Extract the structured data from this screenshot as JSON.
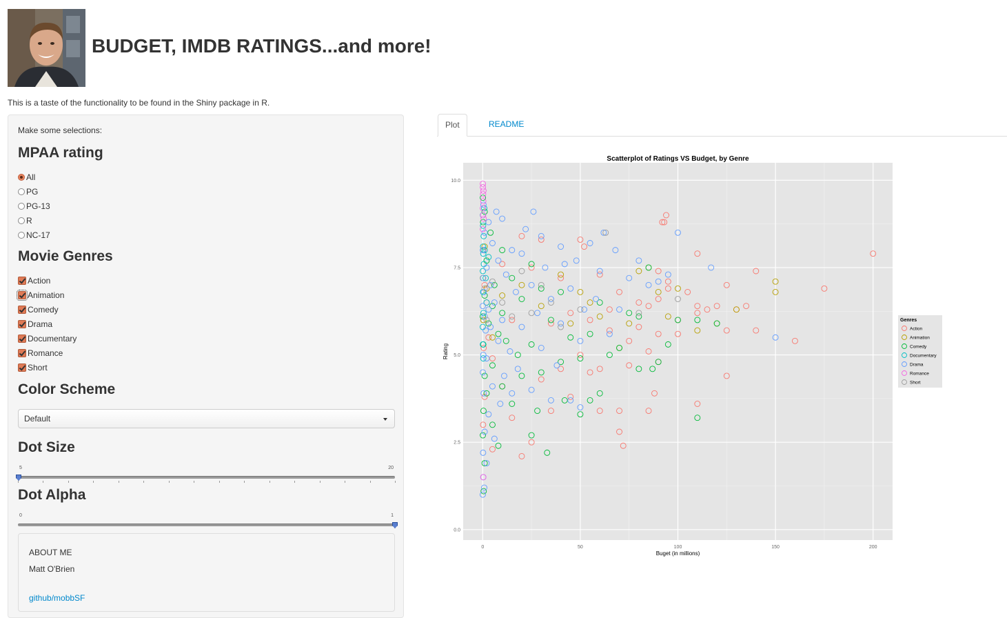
{
  "header": {
    "title": "BUDGET, IMDB RATINGS...and more!",
    "subtitle": "This is a taste of the functionality to be found in the Shiny package in R."
  },
  "sidebar": {
    "instructions": "Make some selections:",
    "mpaa": {
      "heading": "MPAA rating",
      "options": [
        "All",
        "PG",
        "PG-13",
        "R",
        "NC-17"
      ],
      "selected": "All"
    },
    "genres": {
      "heading": "Movie Genres",
      "options": [
        "Action",
        "Animation",
        "Comedy",
        "Drama",
        "Documentary",
        "Romance",
        "Short"
      ],
      "checked": [
        true,
        true,
        true,
        true,
        true,
        true,
        true
      ]
    },
    "color_scheme": {
      "heading": "Color Scheme",
      "selected": "Default"
    },
    "dot_size": {
      "heading": "Dot Size",
      "min": "5",
      "max": "20",
      "value": 5
    },
    "dot_alpha": {
      "heading": "Dot Alpha",
      "min": "0",
      "max": "1",
      "value": 1
    },
    "about": {
      "heading": "ABOUT ME",
      "name": "Matt O'Brien",
      "link": "github/mobbSF"
    }
  },
  "tabs": [
    {
      "label": "Plot",
      "active": true
    },
    {
      "label": "README",
      "active": false
    }
  ],
  "chart_data": {
    "type": "scatter",
    "title": "Scatterplot of Ratings VS Budget, by Genre",
    "xlabel": "Buget (in millions)",
    "ylabel": "Rating",
    "xlim": [
      -10,
      210
    ],
    "ylim": [
      -0.3,
      10.5
    ],
    "x_ticks": [
      0,
      50,
      100,
      150,
      200
    ],
    "x_tick_labels": [
      "0",
      "50",
      "100",
      "150",
      "200"
    ],
    "y_ticks": [
      0,
      2.5,
      5,
      7.5,
      10
    ],
    "y_tick_labels": [
      "0.0",
      "2.5",
      "5.0",
      "7.5",
      "10.0"
    ],
    "grid": true,
    "legend_title": "Genres",
    "legend_position": "right",
    "series": [
      {
        "name": "Action",
        "color": "#F8766D",
        "points": [
          [
            200,
            7.9
          ],
          [
            175,
            6.9
          ],
          [
            160,
            5.4
          ],
          [
            140,
            7.4
          ],
          [
            140,
            5.7
          ],
          [
            135,
            6.4
          ],
          [
            130,
            6.3
          ],
          [
            125,
            4.4
          ],
          [
            125,
            7.0
          ],
          [
            125,
            5.7
          ],
          [
            120,
            6.4
          ],
          [
            115,
            6.3
          ],
          [
            110,
            6.2
          ],
          [
            110,
            6.4
          ],
          [
            110,
            3.6
          ],
          [
            110,
            7.9
          ],
          [
            105,
            6.8
          ],
          [
            100,
            5.6
          ],
          [
            100,
            6.0
          ],
          [
            95,
            6.9
          ],
          [
            95,
            7.1
          ],
          [
            94,
            9.0
          ],
          [
            93,
            8.8
          ],
          [
            92,
            8.8
          ],
          [
            90,
            5.6
          ],
          [
            90,
            4.8
          ],
          [
            90,
            6.6
          ],
          [
            90,
            7.4
          ],
          [
            88,
            3.9
          ],
          [
            85,
            6.4
          ],
          [
            85,
            5.1
          ],
          [
            85,
            3.4
          ],
          [
            80,
            5.8
          ],
          [
            80,
            6.5
          ],
          [
            75,
            5.4
          ],
          [
            75,
            4.7
          ],
          [
            72,
            2.4
          ],
          [
            70,
            3.4
          ],
          [
            70,
            2.8
          ],
          [
            70,
            6.8
          ],
          [
            65,
            5.7
          ],
          [
            65,
            6.3
          ],
          [
            60,
            4.6
          ],
          [
            60,
            3.4
          ],
          [
            60,
            7.3
          ],
          [
            55,
            4.5
          ],
          [
            55,
            6.0
          ],
          [
            52,
            8.1
          ],
          [
            50,
            8.3
          ],
          [
            50,
            5.0
          ],
          [
            45,
            3.8
          ],
          [
            45,
            6.2
          ],
          [
            40,
            7.2
          ],
          [
            40,
            4.6
          ],
          [
            35,
            3.4
          ],
          [
            35,
            5.9
          ],
          [
            30,
            4.3
          ],
          [
            30,
            8.3
          ],
          [
            25,
            2.5
          ],
          [
            25,
            7.5
          ],
          [
            20,
            2.1
          ],
          [
            20,
            8.4
          ],
          [
            15,
            3.2
          ],
          [
            15,
            6.0
          ],
          [
            10,
            4.1
          ],
          [
            10,
            7.6
          ],
          [
            5,
            2.3
          ],
          [
            5,
            4.9
          ],
          [
            3,
            5.5
          ],
          [
            2,
            6.5
          ],
          [
            1,
            3.8
          ],
          [
            1,
            7.0
          ],
          [
            0.5,
            5.2
          ],
          [
            0.3,
            8.0
          ],
          [
            0.2,
            3.0
          ]
        ]
      },
      {
        "name": "Animation",
        "color": "#B79F00",
        "points": [
          [
            150,
            7.1
          ],
          [
            150,
            6.8
          ],
          [
            130,
            6.3
          ],
          [
            120,
            5.9
          ],
          [
            110,
            5.7
          ],
          [
            100,
            6.9
          ],
          [
            95,
            6.1
          ],
          [
            90,
            6.8
          ],
          [
            85,
            7.5
          ],
          [
            80,
            7.4
          ],
          [
            75,
            5.9
          ],
          [
            70,
            5.2
          ],
          [
            60,
            6.1
          ],
          [
            55,
            6.5
          ],
          [
            50,
            6.8
          ],
          [
            45,
            5.9
          ],
          [
            40,
            7.3
          ],
          [
            30,
            6.4
          ],
          [
            20,
            7.0
          ],
          [
            10,
            6.7
          ],
          [
            5,
            5.5
          ],
          [
            2,
            6.9
          ],
          [
            1,
            8.1
          ],
          [
            0.3,
            6.0
          ],
          [
            0.1,
            7.2
          ]
        ]
      },
      {
        "name": "Comedy",
        "color": "#00BA38",
        "points": [
          [
            110,
            3.2
          ],
          [
            120,
            5.9
          ],
          [
            110,
            6.0
          ],
          [
            100,
            6.0
          ],
          [
            95,
            5.3
          ],
          [
            90,
            4.8
          ],
          [
            87,
            4.6
          ],
          [
            85,
            7.5
          ],
          [
            80,
            6.1
          ],
          [
            80,
            4.6
          ],
          [
            75,
            6.2
          ],
          [
            70,
            5.2
          ],
          [
            65,
            5.0
          ],
          [
            60,
            3.9
          ],
          [
            60,
            6.5
          ],
          [
            55,
            3.7
          ],
          [
            55,
            5.6
          ],
          [
            50,
            4.9
          ],
          [
            50,
            3.3
          ],
          [
            45,
            5.5
          ],
          [
            42,
            3.7
          ],
          [
            40,
            4.8
          ],
          [
            40,
            6.8
          ],
          [
            35,
            6.0
          ],
          [
            33,
            2.2
          ],
          [
            30,
            4.5
          ],
          [
            30,
            6.9
          ],
          [
            28,
            3.4
          ],
          [
            25,
            2.7
          ],
          [
            25,
            5.3
          ],
          [
            25,
            7.6
          ],
          [
            20,
            4.4
          ],
          [
            20,
            6.6
          ],
          [
            18,
            5.0
          ],
          [
            15,
            3.6
          ],
          [
            15,
            7.2
          ],
          [
            12,
            5.4
          ],
          [
            10,
            4.1
          ],
          [
            10,
            6.2
          ],
          [
            10,
            8.0
          ],
          [
            8,
            2.4
          ],
          [
            8,
            5.6
          ],
          [
            6,
            7.0
          ],
          [
            5,
            3.0
          ],
          [
            5,
            4.7
          ],
          [
            5,
            6.4
          ],
          [
            4,
            8.5
          ],
          [
            3,
            5.9
          ],
          [
            2,
            3.9
          ],
          [
            2,
            7.7
          ],
          [
            1,
            1.9
          ],
          [
            1,
            4.4
          ],
          [
            1,
            6.7
          ],
          [
            1,
            9.1
          ],
          [
            0.5,
            1.1
          ],
          [
            0.4,
            3.4
          ],
          [
            0.3,
            5.3
          ],
          [
            0.2,
            8.8
          ],
          [
            0.1,
            2.7
          ],
          [
            0.1,
            9.5
          ],
          [
            0.05,
            6.1
          ]
        ]
      },
      {
        "name": "Documentary",
        "color": "#00BFC4",
        "points": [
          [
            0.1,
            9.0
          ],
          [
            0.2,
            8.7
          ],
          [
            0.3,
            7.9
          ],
          [
            0.5,
            8.4
          ],
          [
            0.1,
            7.4
          ],
          [
            0.2,
            6.8
          ],
          [
            0.05,
            5.8
          ],
          [
            0.4,
            6.2
          ],
          [
            0.6,
            7.6
          ],
          [
            1,
            8.0
          ],
          [
            1.5,
            7.2
          ],
          [
            0.3,
            4.9
          ],
          [
            2,
            6.5
          ],
          [
            0.1,
            5.3
          ],
          [
            0.8,
            9.2
          ],
          [
            3,
            7.8
          ],
          [
            0.2,
            8.1
          ]
        ]
      },
      {
        "name": "Drama",
        "color": "#619CFF",
        "points": [
          [
            150,
            5.5
          ],
          [
            117,
            7.5
          ],
          [
            100,
            8.5
          ],
          [
            95,
            7.3
          ],
          [
            90,
            7.1
          ],
          [
            85,
            7.0
          ],
          [
            80,
            7.7
          ],
          [
            75,
            7.2
          ],
          [
            70,
            6.3
          ],
          [
            68,
            8.0
          ],
          [
            65,
            5.6
          ],
          [
            62,
            8.5
          ],
          [
            60,
            7.4
          ],
          [
            58,
            6.6
          ],
          [
            55,
            8.2
          ],
          [
            52,
            6.3
          ],
          [
            50,
            5.4
          ],
          [
            50,
            3.5
          ],
          [
            48,
            7.7
          ],
          [
            45,
            6.9
          ],
          [
            45,
            3.7
          ],
          [
            42,
            7.6
          ],
          [
            40,
            5.9
          ],
          [
            40,
            8.1
          ],
          [
            38,
            4.7
          ],
          [
            35,
            6.6
          ],
          [
            35,
            3.7
          ],
          [
            32,
            7.5
          ],
          [
            30,
            5.2
          ],
          [
            30,
            8.4
          ],
          [
            28,
            6.2
          ],
          [
            26,
            9.1
          ],
          [
            25,
            4.0
          ],
          [
            25,
            7.0
          ],
          [
            22,
            8.6
          ],
          [
            20,
            5.8
          ],
          [
            20,
            7.9
          ],
          [
            18,
            4.6
          ],
          [
            17,
            6.8
          ],
          [
            15,
            3.9
          ],
          [
            15,
            8.0
          ],
          [
            14,
            5.1
          ],
          [
            12,
            7.3
          ],
          [
            11,
            4.4
          ],
          [
            10,
            6.0
          ],
          [
            10,
            8.9
          ],
          [
            9,
            3.6
          ],
          [
            8,
            5.4
          ],
          [
            8,
            7.7
          ],
          [
            7,
            9.1
          ],
          [
            6,
            2.6
          ],
          [
            6,
            6.5
          ],
          [
            5,
            4.1
          ],
          [
            5,
            8.2
          ],
          [
            4,
            5.8
          ],
          [
            4,
            7.0
          ],
          [
            3,
            3.3
          ],
          [
            3,
            6.3
          ],
          [
            3,
            8.8
          ],
          [
            2,
            1.9
          ],
          [
            2,
            4.9
          ],
          [
            2,
            7.5
          ],
          [
            1.5,
            5.7
          ],
          [
            1,
            2.8
          ],
          [
            1,
            6.1
          ],
          [
            1,
            8.5
          ],
          [
            0.8,
            1.2
          ],
          [
            0.5,
            3.9
          ],
          [
            0.5,
            6.8
          ],
          [
            0.4,
            9.3
          ],
          [
            0.3,
            1.5
          ],
          [
            0.3,
            5.0
          ],
          [
            0.2,
            7.2
          ],
          [
            0.2,
            2.2
          ],
          [
            0.1,
            4.5
          ],
          [
            0.1,
            8.0
          ],
          [
            0.05,
            1.0
          ],
          [
            0.05,
            6.4
          ]
        ]
      },
      {
        "name": "Romance",
        "color": "#F564E3",
        "points": [
          [
            0.1,
            9.8
          ],
          [
            0.2,
            9.6
          ],
          [
            0.3,
            9.4
          ],
          [
            0.1,
            9.2
          ],
          [
            0.4,
            9.7
          ],
          [
            0.2,
            9.0
          ],
          [
            0.1,
            9.9
          ],
          [
            0.5,
            8.9
          ],
          [
            0.3,
            1.5
          ],
          [
            0.1,
            8.6
          ]
        ]
      },
      {
        "name": "Short",
        "color": "#9C9C9C",
        "points": [
          [
            63,
            8.5
          ],
          [
            100,
            6.6
          ],
          [
            80,
            6.2
          ],
          [
            50,
            6.3
          ],
          [
            40,
            5.8
          ],
          [
            35,
            6.5
          ],
          [
            30,
            7.0
          ],
          [
            25,
            6.2
          ],
          [
            20,
            7.4
          ],
          [
            15,
            6.1
          ],
          [
            10,
            6.5
          ],
          [
            5,
            7.1
          ],
          [
            2,
            6.0
          ],
          [
            1,
            6.9
          ]
        ]
      }
    ]
  }
}
